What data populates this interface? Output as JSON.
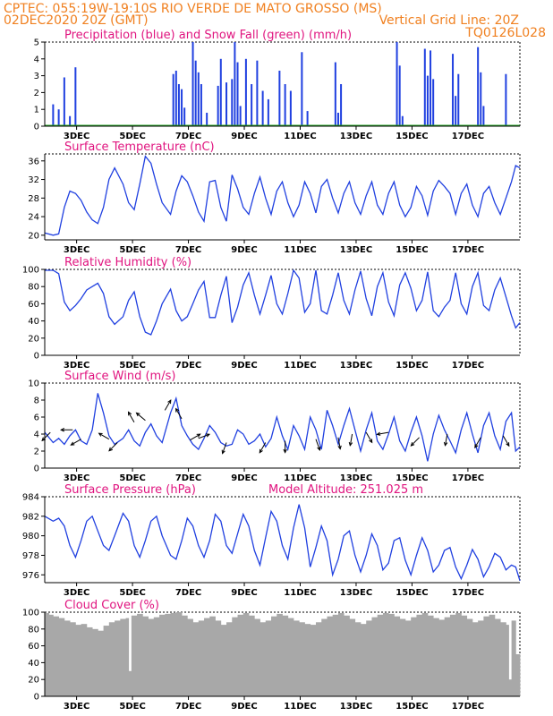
{
  "header": {
    "line1": "CPTEC:  055:19W-19:10S  RIO VERDE DE MATO GROSSO (MS)",
    "line2_left": "02DEC2020 20Z (GMT)",
    "line2_right": "Vertical Grid Line: 20Z",
    "line3_right": "TQ0126L028"
  },
  "colors": {
    "header": "#f08020",
    "title": "#e0147f",
    "line": "#2040e0",
    "precip": "#2040e0",
    "snow": "#20a020",
    "cloud": "#a8a8a8",
    "wind_arrow": "#000000"
  },
  "x_ticks": [
    "3DEC",
    "5DEC",
    "7DEC",
    "9DEC",
    "11DEC",
    "13DEC",
    "15DEC",
    "17DEC"
  ],
  "chart_data": [
    {
      "id": "precip",
      "type": "bar",
      "title": "Precipitation (blue) and Snow Fall (green) (mm/h)",
      "ylim": [
        0,
        5
      ],
      "yticks": [
        "0",
        "1",
        "2",
        "3",
        "4",
        "5"
      ],
      "x": [
        0.3,
        0.5,
        0.7,
        0.9,
        1.1,
        4.6,
        4.7,
        4.8,
        4.9,
        5.0,
        5.3,
        5.4,
        5.5,
        5.6,
        5.8,
        6.2,
        6.3,
        6.5,
        6.7,
        6.8,
        6.9,
        7.0,
        7.2,
        7.4,
        7.6,
        7.8,
        8.0,
        8.4,
        8.6,
        8.8,
        9.2,
        9.4,
        10.4,
        10.5,
        10.6,
        12.6,
        12.7,
        12.8,
        13.6,
        13.7,
        13.8,
        13.9,
        14.6,
        14.7,
        14.8,
        15.5,
        15.6,
        15.7,
        16.5
      ],
      "values": [
        1.3,
        1.0,
        2.9,
        0.6,
        3.5,
        3.1,
        3.3,
        2.5,
        2.2,
        1.1,
        5.0,
        3.9,
        3.2,
        2.5,
        0.8,
        2.4,
        4.0,
        2.6,
        2.8,
        5.0,
        3.8,
        1.2,
        4.0,
        2.5,
        3.9,
        2.1,
        1.6,
        3.3,
        2.5,
        2.1,
        4.4,
        0.9,
        3.8,
        0.8,
        2.5,
        5.0,
        3.6,
        0.6,
        4.6,
        3.0,
        4.5,
        2.8,
        4.3,
        1.8,
        3.1,
        4.7,
        3.2,
        1.2,
        3.1
      ],
      "snow": [
        0,
        0,
        0,
        0,
        0,
        0,
        0,
        0,
        0,
        0,
        0,
        0,
        0,
        0,
        0,
        0,
        0,
        0,
        0,
        0,
        0,
        0,
        0,
        0,
        0,
        0,
        0,
        0,
        0,
        0,
        0,
        0,
        0,
        0,
        0,
        0,
        0,
        0,
        0,
        0,
        0,
        0,
        0,
        0,
        0,
        0,
        0,
        0,
        0
      ]
    },
    {
      "id": "temp",
      "type": "line",
      "title": "Surface Temperature (nC)",
      "ylim": [
        19,
        37.5
      ],
      "yticks": [
        "20",
        "24",
        "28",
        "32",
        "36"
      ],
      "x": [
        0.0,
        0.3,
        0.5,
        0.7,
        0.9,
        1.1,
        1.3,
        1.5,
        1.7,
        1.9,
        2.1,
        2.3,
        2.5,
        2.8,
        3.0,
        3.2,
        3.4,
        3.6,
        3.8,
        4.0,
        4.2,
        4.5,
        4.7,
        4.9,
        5.1,
        5.3,
        5.5,
        5.7,
        5.9,
        6.1,
        6.3,
        6.5,
        6.7,
        6.9,
        7.1,
        7.3,
        7.5,
        7.7,
        7.9,
        8.1,
        8.3,
        8.5,
        8.7,
        8.9,
        9.1,
        9.3,
        9.5,
        9.7,
        9.9,
        10.1,
        10.3,
        10.5,
        10.7,
        10.9,
        11.1,
        11.3,
        11.5,
        11.7,
        11.9,
        12.1,
        12.3,
        12.5,
        12.7,
        12.9,
        13.1,
        13.3,
        13.5,
        13.7,
        13.9,
        14.1,
        14.3,
        14.5,
        14.7,
        14.9,
        15.1,
        15.3,
        15.5,
        15.7,
        15.9,
        16.1,
        16.3,
        16.5,
        16.7,
        16.85,
        17.0
      ],
      "values": [
        20.5,
        20.0,
        20.3,
        26.0,
        29.5,
        29.0,
        27.5,
        25.0,
        23.3,
        22.5,
        26.0,
        32.0,
        34.5,
        31.0,
        27.0,
        25.5,
        31.0,
        37.0,
        35.5,
        31.0,
        27.0,
        24.5,
        29.5,
        32.8,
        31.5,
        28.5,
        25.0,
        23.0,
        31.5,
        31.8,
        26.0,
        23.0,
        33.0,
        30.0,
        26.0,
        24.5,
        29.0,
        32.5,
        28.0,
        24.5,
        29.5,
        31.5,
        27.0,
        24.0,
        26.5,
        31.5,
        29.0,
        24.8,
        30.5,
        32.0,
        28.0,
        24.8,
        29.0,
        31.5,
        27.0,
        24.5,
        28.5,
        31.5,
        26.5,
        24.5,
        29.0,
        31.5,
        26.5,
        24.0,
        26.0,
        30.5,
        28.5,
        24.3,
        29.5,
        31.8,
        30.5,
        29.0,
        24.5,
        29.0,
        31.0,
        26.5,
        24.0,
        29.0,
        30.5,
        27.0,
        24.5,
        28.0,
        31.5,
        35.0,
        34.5
      ]
    },
    {
      "id": "rh",
      "type": "line",
      "title": "Relative Humidity (%)",
      "ylim": [
        0,
        100
      ],
      "yticks": [
        "0",
        "20",
        "40",
        "60",
        "80",
        "100"
      ],
      "x": [
        0.0,
        0.3,
        0.5,
        0.7,
        0.9,
        1.1,
        1.3,
        1.5,
        1.7,
        1.9,
        2.1,
        2.3,
        2.5,
        2.8,
        3.0,
        3.2,
        3.4,
        3.6,
        3.8,
        4.0,
        4.2,
        4.5,
        4.7,
        4.9,
        5.1,
        5.3,
        5.5,
        5.7,
        5.9,
        6.1,
        6.3,
        6.5,
        6.7,
        6.9,
        7.1,
        7.3,
        7.5,
        7.7,
        7.9,
        8.1,
        8.3,
        8.5,
        8.7,
        8.9,
        9.1,
        9.3,
        9.5,
        9.7,
        9.9,
        10.1,
        10.3,
        10.5,
        10.7,
        10.9,
        11.1,
        11.3,
        11.5,
        11.7,
        11.9,
        12.1,
        12.3,
        12.5,
        12.7,
        12.9,
        13.1,
        13.3,
        13.5,
        13.7,
        13.9,
        14.1,
        14.3,
        14.5,
        14.7,
        14.9,
        15.1,
        15.3,
        15.5,
        15.7,
        15.9,
        16.1,
        16.3,
        16.5,
        16.7,
        16.85,
        17.0
      ],
      "values": [
        99.0,
        99.0,
        95.0,
        62.0,
        52.0,
        58.0,
        66.0,
        76.0,
        80.0,
        84.0,
        72.0,
        45.0,
        36.0,
        45.0,
        64.0,
        74.0,
        45.0,
        27.0,
        24.0,
        40.0,
        60.0,
        77.0,
        52.0,
        40.0,
        45.0,
        60.0,
        76.0,
        86.0,
        44.0,
        44.0,
        70.0,
        92.0,
        38.0,
        56.0,
        82.0,
        96.0,
        70.0,
        48.0,
        70.0,
        93.0,
        60.0,
        48.0,
        72.0,
        99.0,
        90.0,
        50.0,
        60.0,
        99.0,
        52.0,
        48.0,
        70.0,
        96.0,
        64.0,
        48.0,
        76.0,
        98.0,
        66.0,
        46.0,
        80.0,
        96.0,
        62.0,
        46.0,
        82.0,
        96.0,
        78.0,
        52.0,
        64.0,
        97.0,
        52.0,
        45.0,
        56.0,
        64.0,
        96.0,
        60.0,
        48.0,
        80.0,
        96.0,
        58.0,
        52.0,
        76.0,
        90.0,
        68.0,
        46.0,
        32.0,
        38.0
      ]
    },
    {
      "id": "wind",
      "type": "line",
      "title": "Surface Wind (m/s)",
      "ylim": [
        0,
        10
      ],
      "yticks": [
        "0",
        "2",
        "4",
        "6",
        "8",
        "10"
      ],
      "x": [
        0.0,
        0.3,
        0.5,
        0.7,
        0.9,
        1.1,
        1.3,
        1.5,
        1.7,
        1.9,
        2.1,
        2.3,
        2.5,
        2.8,
        3.0,
        3.2,
        3.4,
        3.6,
        3.8,
        4.0,
        4.2,
        4.5,
        4.7,
        4.9,
        5.1,
        5.3,
        5.5,
        5.7,
        5.9,
        6.1,
        6.3,
        6.5,
        6.7,
        6.9,
        7.1,
        7.3,
        7.5,
        7.7,
        7.9,
        8.1,
        8.3,
        8.5,
        8.7,
        8.9,
        9.1,
        9.3,
        9.5,
        9.7,
        9.9,
        10.1,
        10.3,
        10.5,
        10.7,
        10.9,
        11.1,
        11.3,
        11.5,
        11.7,
        11.9,
        12.1,
        12.3,
        12.5,
        12.7,
        12.9,
        13.1,
        13.3,
        13.5,
        13.7,
        13.9,
        14.1,
        14.3,
        14.5,
        14.7,
        14.9,
        15.1,
        15.3,
        15.5,
        15.7,
        15.9,
        16.1,
        16.3,
        16.5,
        16.7,
        16.85,
        17.0
      ],
      "values": [
        4.2,
        3.0,
        3.5,
        2.8,
        3.8,
        4.5,
        3.2,
        2.8,
        4.5,
        8.8,
        6.5,
        3.8,
        2.8,
        3.5,
        4.5,
        3.2,
        2.6,
        4.2,
        5.2,
        3.8,
        3.0,
        6.5,
        8.2,
        5.0,
        3.8,
        2.8,
        2.2,
        3.5,
        5.0,
        4.2,
        3.0,
        2.6,
        2.8,
        4.5,
        4.0,
        2.8,
        3.2,
        4.0,
        2.5,
        3.5,
        6.0,
        3.8,
        2.2,
        5.0,
        3.8,
        2.2,
        6.0,
        4.5,
        2.2,
        6.8,
        5.0,
        2.8,
        5.0,
        7.0,
        4.5,
        2.0,
        4.5,
        6.5,
        3.2,
        2.2,
        4.0,
        6.0,
        3.2,
        2.0,
        4.2,
        6.0,
        3.8,
        0.8,
        4.0,
        6.2,
        4.5,
        3.2,
        1.8,
        4.5,
        6.5,
        4.0,
        1.8,
        5.0,
        6.5,
        3.8,
        2.2,
        5.5,
        6.5,
        2.0,
        2.5
      ],
      "arrows": [
        {
          "x": 0.2,
          "y": 4.2,
          "dir": 225
        },
        {
          "x": 1.0,
          "y": 4.5,
          "dir": 180
        },
        {
          "x": 1.3,
          "y": 3.4,
          "dir": 210
        },
        {
          "x": 2.3,
          "y": 3.4,
          "dir": 150
        },
        {
          "x": 2.6,
          "y": 3.0,
          "dir": 225
        },
        {
          "x": 3.2,
          "y": 5.4,
          "dir": 120
        },
        {
          "x": 3.6,
          "y": 5.6,
          "dir": 140
        },
        {
          "x": 4.3,
          "y": 6.8,
          "dir": 60
        },
        {
          "x": 4.9,
          "y": 5.8,
          "dir": 120
        },
        {
          "x": 5.2,
          "y": 3.3,
          "dir": 30
        },
        {
          "x": 5.5,
          "y": 3.5,
          "dir": 20
        },
        {
          "x": 6.5,
          "y": 3.0,
          "dir": 250
        },
        {
          "x": 7.9,
          "y": 3.0,
          "dir": 240
        },
        {
          "x": 8.6,
          "y": 3.2,
          "dir": 270
        },
        {
          "x": 9.7,
          "y": 3.4,
          "dir": 290
        },
        {
          "x": 10.5,
          "y": 3.6,
          "dir": 280
        },
        {
          "x": 11.0,
          "y": 4.0,
          "dir": 260
        },
        {
          "x": 11.5,
          "y": 4.2,
          "dir": 300
        },
        {
          "x": 12.3,
          "y": 4.2,
          "dir": 190
        },
        {
          "x": 13.4,
          "y": 3.6,
          "dir": 225
        },
        {
          "x": 14.4,
          "y": 4.0,
          "dir": 260
        },
        {
          "x": 15.6,
          "y": 3.6,
          "dir": 240
        },
        {
          "x": 16.4,
          "y": 3.8,
          "dir": 300
        }
      ]
    },
    {
      "id": "pressure",
      "type": "line",
      "title": "Surface Pressure (hPa)",
      "subtitle": "Model Altitude: 251.025 m",
      "ylim": [
        975.2,
        984
      ],
      "yticks": [
        "976",
        "978",
        "980",
        "982",
        "984"
      ],
      "x": [
        0.0,
        0.3,
        0.5,
        0.7,
        0.9,
        1.1,
        1.3,
        1.5,
        1.7,
        1.9,
        2.1,
        2.3,
        2.5,
        2.8,
        3.0,
        3.2,
        3.4,
        3.6,
        3.8,
        4.0,
        4.2,
        4.5,
        4.7,
        4.9,
        5.1,
        5.3,
        5.5,
        5.7,
        5.9,
        6.1,
        6.3,
        6.5,
        6.7,
        6.9,
        7.1,
        7.3,
        7.5,
        7.7,
        7.9,
        8.1,
        8.3,
        8.5,
        8.7,
        8.9,
        9.1,
        9.3,
        9.5,
        9.7,
        9.9,
        10.1,
        10.3,
        10.5,
        10.7,
        10.9,
        11.1,
        11.3,
        11.5,
        11.7,
        11.9,
        12.1,
        12.3,
        12.5,
        12.7,
        12.9,
        13.1,
        13.3,
        13.5,
        13.7,
        13.9,
        14.1,
        14.3,
        14.5,
        14.7,
        14.9,
        15.1,
        15.3,
        15.5,
        15.7,
        15.9,
        16.1,
        16.3,
        16.5,
        16.7,
        16.85,
        17.0
      ],
      "values": [
        982.0,
        981.5,
        981.8,
        981.0,
        979.0,
        977.8,
        979.5,
        981.5,
        982.0,
        980.5,
        979.0,
        978.5,
        980.0,
        982.3,
        981.5,
        979.0,
        977.8,
        979.5,
        981.5,
        982.0,
        980.0,
        978.0,
        977.6,
        979.5,
        981.8,
        981.0,
        979.0,
        977.8,
        979.5,
        982.2,
        981.5,
        979.0,
        978.2,
        980.2,
        982.2,
        981.0,
        978.5,
        977.0,
        979.8,
        982.5,
        981.5,
        979.0,
        977.6,
        980.8,
        983.2,
        980.8,
        976.8,
        978.8,
        981.0,
        979.5,
        976.0,
        977.6,
        980.0,
        980.5,
        978.0,
        976.3,
        978.0,
        980.2,
        979.0,
        976.5,
        977.2,
        979.5,
        979.8,
        977.5,
        976.0,
        978.0,
        979.8,
        978.5,
        976.3,
        977.0,
        978.5,
        978.8,
        976.8,
        975.6,
        977.0,
        978.6,
        977.6,
        975.8,
        976.8,
        978.2,
        977.8,
        976.5,
        977.0,
        976.8,
        975.4
      ]
    },
    {
      "id": "cloud",
      "type": "area",
      "title": "Cloud Cover (%)",
      "ylim": [
        0,
        100
      ],
      "yticks": [
        "0",
        "20",
        "40",
        "60",
        "80",
        "100"
      ],
      "x": [
        0.0,
        0.15,
        0.3,
        0.5,
        0.7,
        0.9,
        1.1,
        1.3,
        1.5,
        1.7,
        1.9,
        2.1,
        2.3,
        2.5,
        2.7,
        2.9,
        3.0,
        3.1,
        3.3,
        3.5,
        3.7,
        3.9,
        4.1,
        4.3,
        4.5,
        4.7,
        4.9,
        5.1,
        5.3,
        5.5,
        5.7,
        5.9,
        6.1,
        6.3,
        6.5,
        6.7,
        6.9,
        7.1,
        7.3,
        7.5,
        7.7,
        7.9,
        8.1,
        8.3,
        8.5,
        8.7,
        8.9,
        9.1,
        9.3,
        9.5,
        9.7,
        9.9,
        10.1,
        10.3,
        10.5,
        10.7,
        10.9,
        11.1,
        11.3,
        11.5,
        11.7,
        11.9,
        12.1,
        12.3,
        12.5,
        12.7,
        12.9,
        13.1,
        13.3,
        13.5,
        13.7,
        13.9,
        14.1,
        14.3,
        14.5,
        14.7,
        14.9,
        15.1,
        15.3,
        15.5,
        15.7,
        15.9,
        16.1,
        16.3,
        16.5,
        16.6,
        16.7,
        16.85,
        17.0
      ],
      "values": [
        99,
        97,
        95,
        93,
        90,
        88,
        85,
        86,
        82,
        80,
        78,
        84,
        88,
        90,
        92,
        93,
        30,
        96,
        98,
        95,
        92,
        94,
        97,
        98,
        99,
        100,
        96,
        92,
        88,
        90,
        93,
        95,
        90,
        85,
        88,
        94,
        97,
        99,
        96,
        92,
        88,
        90,
        95,
        98,
        96,
        93,
        90,
        88,
        86,
        85,
        88,
        92,
        95,
        97,
        99,
        96,
        92,
        88,
        86,
        90,
        94,
        97,
        99,
        98,
        95,
        92,
        90,
        94,
        97,
        99,
        96,
        93,
        91,
        94,
        97,
        99,
        96,
        92,
        88,
        90,
        95,
        97,
        92,
        88,
        85,
        20,
        90,
        50,
        12
      ]
    }
  ]
}
